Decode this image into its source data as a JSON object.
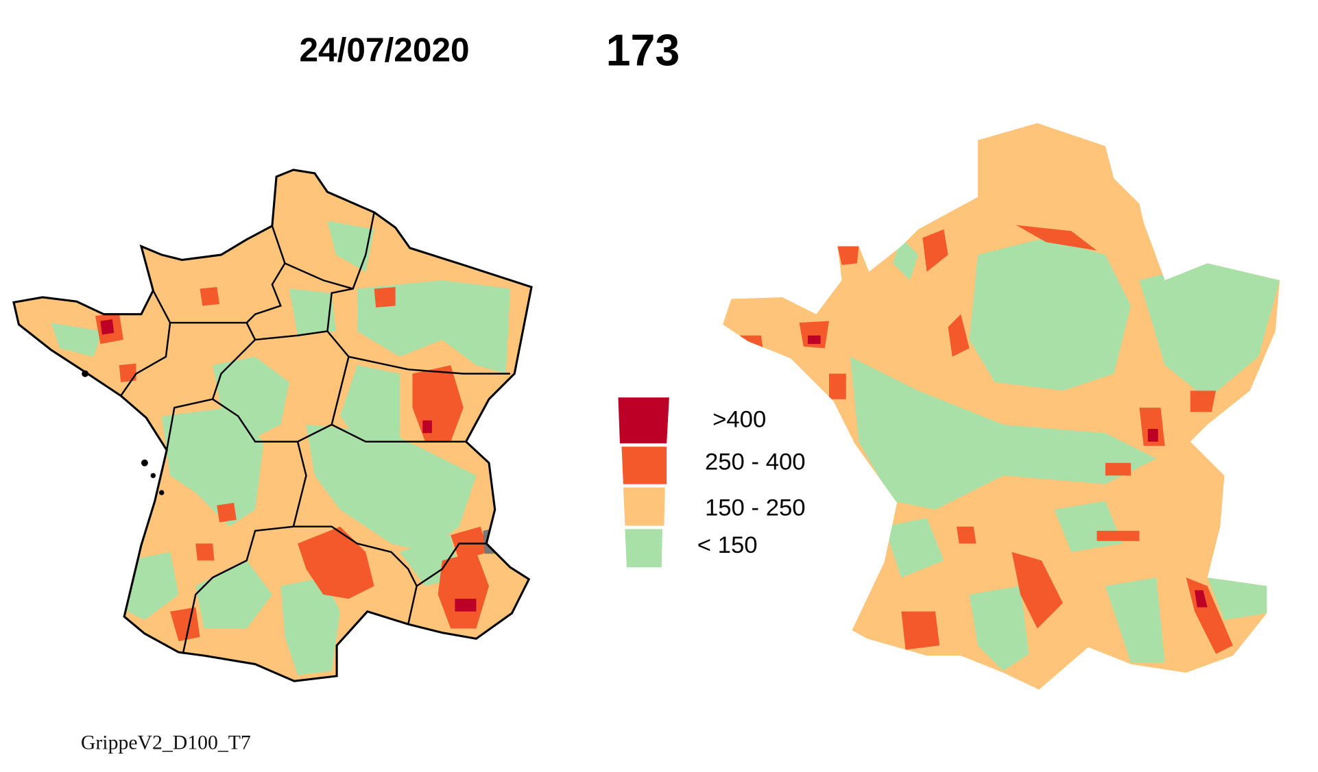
{
  "header": {
    "date": "24/07/2020",
    "count": "173"
  },
  "legend": {
    "items": [
      {
        "label": ">400",
        "color": "#bd0026"
      },
      {
        "label": "250 - 400",
        "color": "#f4592b"
      },
      {
        "label": "150 - 250",
        "color": "#fdc47a"
      },
      {
        "label": "< 150",
        "color": "#a8e0a8"
      }
    ]
  },
  "maps": {
    "left": "France choropleth map with regional borders",
    "right": "France cartogram"
  },
  "footer": {
    "credit": "GrippeV2_D100_T7"
  },
  "colors": {
    "missing": "#777777",
    "border": "#000000"
  }
}
